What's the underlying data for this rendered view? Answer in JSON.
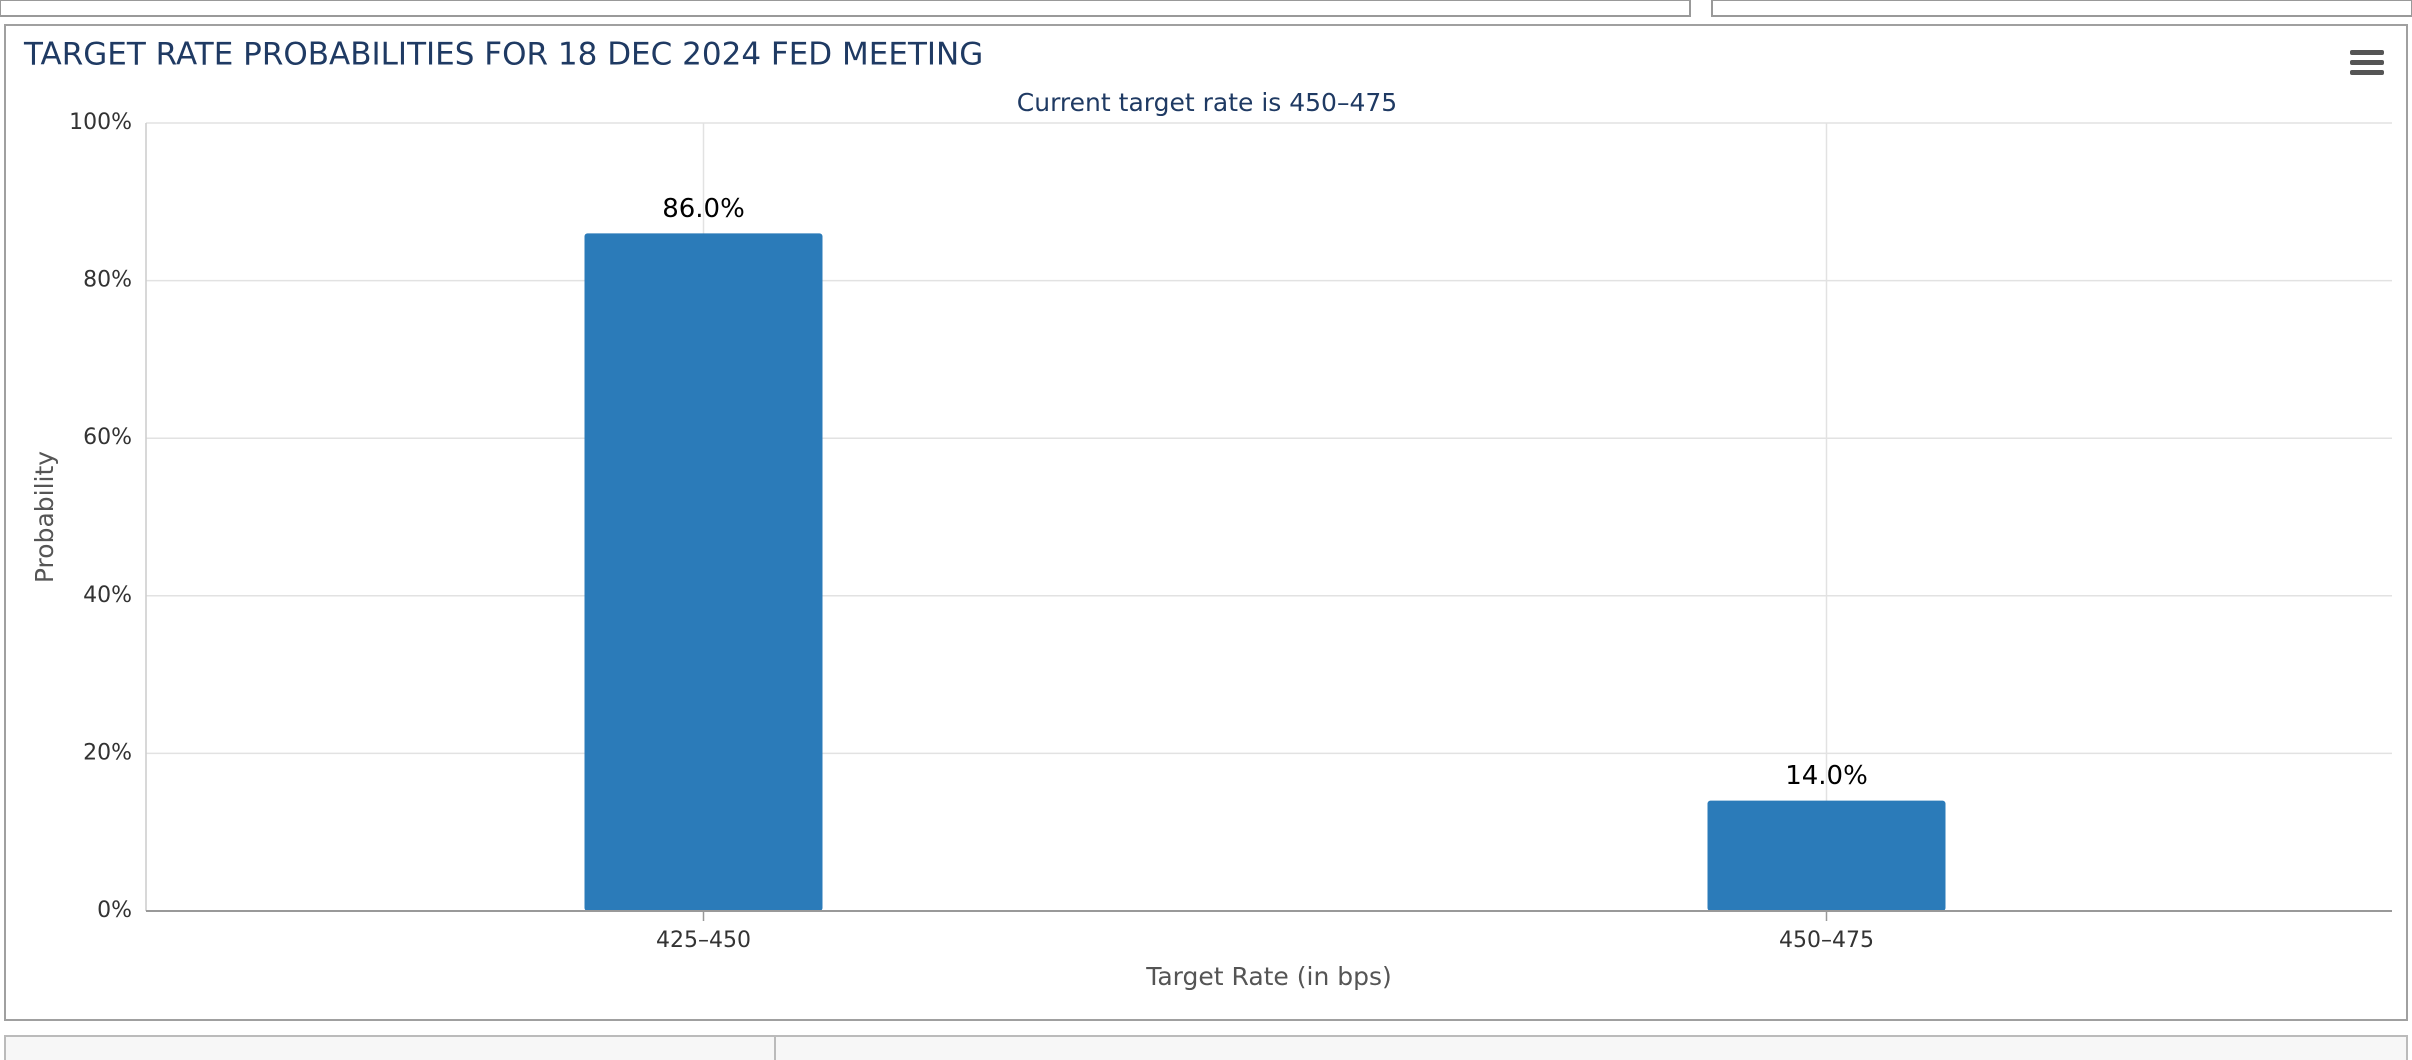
{
  "chart_data": {
    "type": "bar",
    "title": "TARGET RATE PROBABILITIES FOR 18 DEC 2024 FED MEETING",
    "subtitle": "Current target rate is 450–475",
    "x_label": "Target Rate (in bps)",
    "y_label": "Probability",
    "categories": [
      "425–450",
      "450–475"
    ],
    "values": [
      86.0,
      14.0
    ],
    "value_labels": [
      "86.0%",
      "14.0%"
    ],
    "color": "#2b7bb9",
    "ylim": [
      0,
      100
    ],
    "yticks": [
      {
        "value": 0,
        "label": "0%"
      },
      {
        "value": 20,
        "label": "20%"
      },
      {
        "value": 40,
        "label": "40%"
      },
      {
        "value": 60,
        "label": "60%"
      },
      {
        "value": 80,
        "label": "80%"
      },
      {
        "value": 100,
        "label": "100%"
      }
    ],
    "grid": true
  }
}
